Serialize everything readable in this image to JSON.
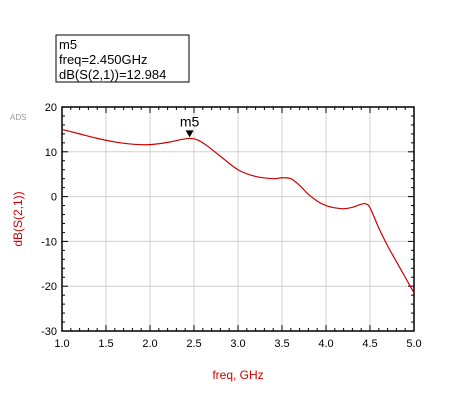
{
  "chart_data": {
    "type": "line",
    "brand_label": "ADS",
    "xlabel": "freq, GHz",
    "ylabel": "dB(S(2,1))",
    "xlim": [
      1.0,
      5.0
    ],
    "ylim": [
      -30,
      20
    ],
    "x_ticks": [
      "1.0",
      "1.5",
      "2.0",
      "2.5",
      "3.0",
      "3.5",
      "4.0",
      "4.5",
      "5.0"
    ],
    "y_ticks": [
      "20",
      "10",
      "0",
      "-10",
      "-20",
      "-30"
    ],
    "grid": true,
    "series": [
      {
        "color": "#cc0000",
        "x": [
          1.0,
          1.2,
          1.4,
          1.6,
          1.8,
          2.0,
          2.2,
          2.45,
          2.6,
          2.8,
          3.0,
          3.2,
          3.4,
          3.5,
          3.6,
          3.7,
          3.8,
          3.9,
          4.0,
          4.1,
          4.2,
          4.3,
          4.4,
          4.45,
          4.5,
          4.6,
          4.7,
          4.8,
          4.9,
          5.0
        ],
        "y": [
          15.0,
          14.0,
          13.0,
          12.2,
          11.7,
          11.6,
          12.1,
          12.984,
          12.0,
          9.0,
          6.0,
          4.5,
          4.0,
          4.2,
          4.0,
          2.5,
          0.5,
          -1.0,
          -2.0,
          -2.5,
          -2.7,
          -2.4,
          -1.7,
          -1.6,
          -2.5,
          -7.0,
          -11.0,
          -14.5,
          -18.0,
          -21.5
        ]
      }
    ],
    "marker": {
      "name": "m5",
      "x": 2.45,
      "y": 12.984,
      "lines": [
        "m5",
        "freq=2.450GHz",
        "dB(S(2,1))=12.984"
      ]
    }
  },
  "colors": {
    "trace": "#cc0000",
    "axis_text_red": "#cc0000",
    "axis": "#000000",
    "grid": "#d0d0d0",
    "brand": "#999999"
  }
}
